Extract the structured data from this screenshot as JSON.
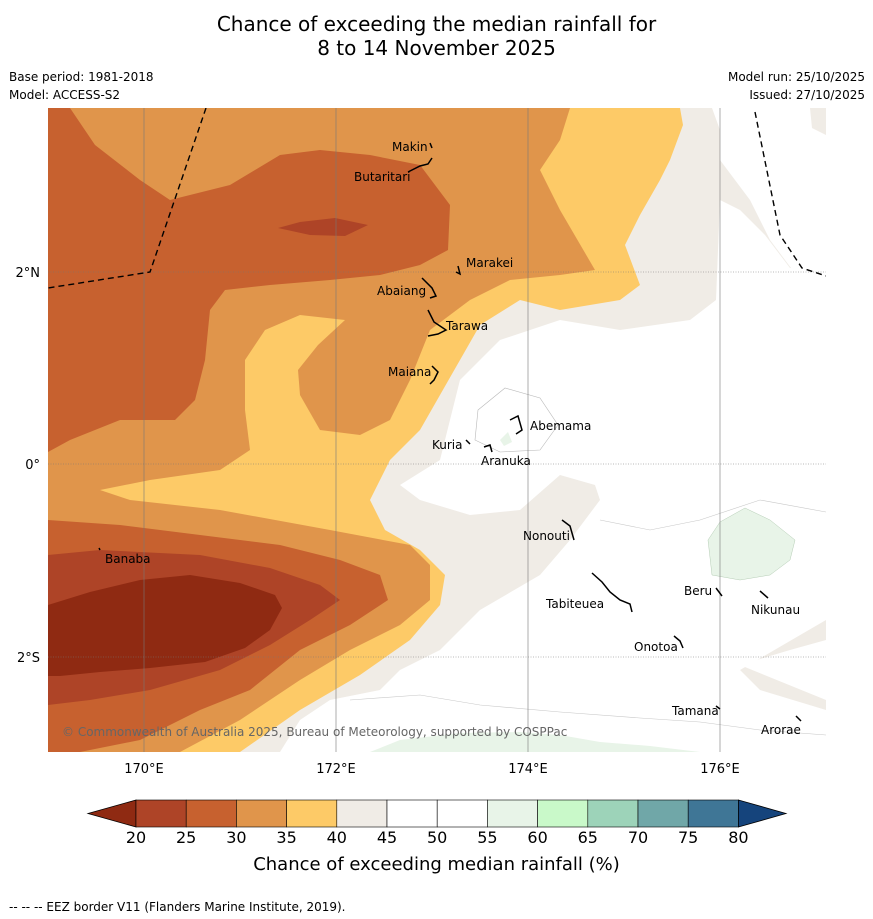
{
  "title_line1": "Chance of exceeding the median rainfall for",
  "title_line2": "8 to 14 November 2025",
  "base_period": "Base period: 1981-2018",
  "model": "Model: ACCESS-S2",
  "model_run": "Model run: 25/10/2025",
  "issued": "Issued: 27/10/2025",
  "axes": {
    "lon_ticks": [
      "170°E",
      "172°E",
      "174°E",
      "176°E"
    ],
    "lat_ticks": [
      "2°N",
      "0°",
      "2°S"
    ]
  },
  "islands": {
    "makin": "Makin",
    "butaritari": "Butaritari",
    "marakei": "Marakei",
    "abaiang": "Abaiang",
    "tarawa": "Tarawa",
    "maiana": "Maiana",
    "abemama": "Abemama",
    "kuria": "Kuria",
    "aranuka": "Aranuka",
    "nonouti": "Nonouti",
    "banaba": "Banaba",
    "tabiteuea": "Tabiteuea",
    "beru": "Beru",
    "nikunau": "Nikunau",
    "onotoa": "Onotoa",
    "tamana": "Tamana",
    "arorae": "Arorae"
  },
  "copyright": "© Commonwealth of Australia 2025, Bureau of Meteorology, supported by COSPPac",
  "colorbar": {
    "label": "Chance of exceeding median rainfall (%)",
    "ticks": [
      "20",
      "25",
      "30",
      "35",
      "40",
      "45",
      "50",
      "55",
      "60",
      "65",
      "70",
      "75",
      "80"
    ],
    "colors": {
      "under20": "#8f2a12",
      "c20_25": "#ae4427",
      "c25_30": "#c7612f",
      "c30_35": "#e0954b",
      "c35_40": "#fdca67",
      "c40_45": "#f0ece6",
      "c45_50": "#ffffff",
      "c50_55": "#ffffff",
      "c55_60": "#e8f4e8",
      "c60_65": "#c9f9c9",
      "c65_70": "#9dd3b9",
      "c70_75": "#70a7a8",
      "c75_80": "#3f7696",
      "over80": "#15447c"
    }
  },
  "footer": "--  --  -- EEZ border V11 (Flanders Marine Institute, 2019)."
}
